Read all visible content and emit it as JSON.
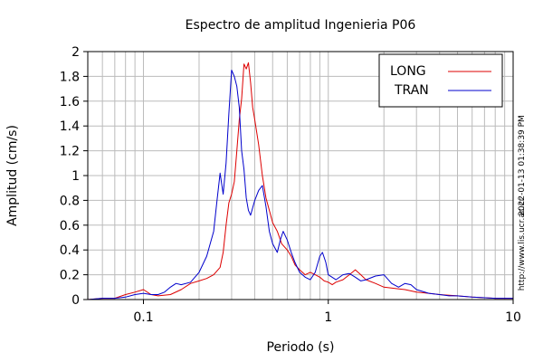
{
  "chart_data": {
    "type": "line",
    "title": "Espectro de amplitud Ingenieria P06",
    "xlabel": "Periodo (s)",
    "ylabel": "Amplitud (cm/s)",
    "x_scale": "log",
    "xlim": [
      0.05,
      10
    ],
    "ylim": [
      0,
      2
    ],
    "x_ticks": [
      {
        "value": 0.1,
        "label": "0.1"
      },
      {
        "value": 1,
        "label": "1"
      },
      {
        "value": 10,
        "label": "10"
      }
    ],
    "y_ticks": [
      {
        "value": 0,
        "label": "0"
      },
      {
        "value": 0.2,
        "label": "0.2"
      },
      {
        "value": 0.4,
        "label": "0.4"
      },
      {
        "value": 0.6,
        "label": "0.6"
      },
      {
        "value": 0.8,
        "label": "0.8"
      },
      {
        "value": 1.0,
        "label": "1"
      },
      {
        "value": 1.2,
        "label": "1.2"
      },
      {
        "value": 1.4,
        "label": "1.4"
      },
      {
        "value": 1.6,
        "label": "1.6"
      },
      {
        "value": 1.8,
        "label": "1.8"
      },
      {
        "value": 2.0,
        "label": "2"
      }
    ],
    "grid": true,
    "legend_position": "top-right",
    "series": [
      {
        "name": "LONG",
        "color": "#dd0000",
        "points": [
          [
            0.05,
            0.0
          ],
          [
            0.06,
            0.01
          ],
          [
            0.07,
            0.01
          ],
          [
            0.08,
            0.04
          ],
          [
            0.09,
            0.06
          ],
          [
            0.1,
            0.08
          ],
          [
            0.11,
            0.04
          ],
          [
            0.12,
            0.03
          ],
          [
            0.14,
            0.04
          ],
          [
            0.16,
            0.08
          ],
          [
            0.18,
            0.13
          ],
          [
            0.2,
            0.15
          ],
          [
            0.22,
            0.17
          ],
          [
            0.24,
            0.2
          ],
          [
            0.26,
            0.26
          ],
          [
            0.27,
            0.38
          ],
          [
            0.28,
            0.6
          ],
          [
            0.29,
            0.78
          ],
          [
            0.3,
            0.85
          ],
          [
            0.31,
            0.95
          ],
          [
            0.32,
            1.2
          ],
          [
            0.33,
            1.45
          ],
          [
            0.34,
            1.62
          ],
          [
            0.35,
            1.9
          ],
          [
            0.36,
            1.86
          ],
          [
            0.37,
            1.91
          ],
          [
            0.38,
            1.75
          ],
          [
            0.39,
            1.55
          ],
          [
            0.4,
            1.45
          ],
          [
            0.42,
            1.25
          ],
          [
            0.44,
            1.0
          ],
          [
            0.46,
            0.82
          ],
          [
            0.48,
            0.72
          ],
          [
            0.5,
            0.62
          ],
          [
            0.53,
            0.55
          ],
          [
            0.56,
            0.45
          ],
          [
            0.6,
            0.4
          ],
          [
            0.63,
            0.35
          ],
          [
            0.66,
            0.28
          ],
          [
            0.7,
            0.24
          ],
          [
            0.75,
            0.2
          ],
          [
            0.8,
            0.22
          ],
          [
            0.85,
            0.2
          ],
          [
            0.9,
            0.18
          ],
          [
            0.95,
            0.15
          ],
          [
            1.0,
            0.14
          ],
          [
            1.05,
            0.12
          ],
          [
            1.1,
            0.14
          ],
          [
            1.2,
            0.16
          ],
          [
            1.3,
            0.2
          ],
          [
            1.4,
            0.24
          ],
          [
            1.5,
            0.2
          ],
          [
            1.6,
            0.16
          ],
          [
            1.8,
            0.13
          ],
          [
            2.0,
            0.1
          ],
          [
            2.3,
            0.09
          ],
          [
            2.6,
            0.08
          ],
          [
            3.0,
            0.06
          ],
          [
            3.5,
            0.05
          ],
          [
            4.0,
            0.04
          ],
          [
            5.0,
            0.03
          ],
          [
            6.0,
            0.02
          ],
          [
            8.0,
            0.01
          ],
          [
            10.0,
            0.01
          ]
        ]
      },
      {
        "name": "TRAN",
        "color": "#0000cc",
        "points": [
          [
            0.05,
            0.0
          ],
          [
            0.06,
            0.01
          ],
          [
            0.07,
            0.01
          ],
          [
            0.08,
            0.02
          ],
          [
            0.09,
            0.04
          ],
          [
            0.1,
            0.05
          ],
          [
            0.11,
            0.04
          ],
          [
            0.12,
            0.04
          ],
          [
            0.13,
            0.06
          ],
          [
            0.14,
            0.1
          ],
          [
            0.15,
            0.13
          ],
          [
            0.16,
            0.12
          ],
          [
            0.18,
            0.14
          ],
          [
            0.2,
            0.22
          ],
          [
            0.22,
            0.35
          ],
          [
            0.24,
            0.55
          ],
          [
            0.25,
            0.8
          ],
          [
            0.26,
            1.02
          ],
          [
            0.27,
            0.85
          ],
          [
            0.28,
            1.1
          ],
          [
            0.29,
            1.5
          ],
          [
            0.3,
            1.85
          ],
          [
            0.31,
            1.8
          ],
          [
            0.32,
            1.72
          ],
          [
            0.33,
            1.55
          ],
          [
            0.34,
            1.2
          ],
          [
            0.35,
            1.05
          ],
          [
            0.36,
            0.82
          ],
          [
            0.37,
            0.72
          ],
          [
            0.38,
            0.68
          ],
          [
            0.4,
            0.8
          ],
          [
            0.42,
            0.88
          ],
          [
            0.44,
            0.92
          ],
          [
            0.46,
            0.75
          ],
          [
            0.48,
            0.55
          ],
          [
            0.5,
            0.45
          ],
          [
            0.53,
            0.38
          ],
          [
            0.55,
            0.48
          ],
          [
            0.57,
            0.55
          ],
          [
            0.6,
            0.48
          ],
          [
            0.63,
            0.38
          ],
          [
            0.66,
            0.3
          ],
          [
            0.7,
            0.22
          ],
          [
            0.75,
            0.18
          ],
          [
            0.8,
            0.16
          ],
          [
            0.85,
            0.22
          ],
          [
            0.9,
            0.35
          ],
          [
            0.93,
            0.38
          ],
          [
            0.97,
            0.3
          ],
          [
            1.0,
            0.2
          ],
          [
            1.1,
            0.16
          ],
          [
            1.2,
            0.2
          ],
          [
            1.3,
            0.21
          ],
          [
            1.4,
            0.18
          ],
          [
            1.5,
            0.15
          ],
          [
            1.6,
            0.16
          ],
          [
            1.8,
            0.19
          ],
          [
            2.0,
            0.2
          ],
          [
            2.2,
            0.13
          ],
          [
            2.4,
            0.1
          ],
          [
            2.6,
            0.13
          ],
          [
            2.8,
            0.12
          ],
          [
            3.0,
            0.08
          ],
          [
            3.5,
            0.05
          ],
          [
            4.0,
            0.04
          ],
          [
            4.5,
            0.03
          ],
          [
            5.0,
            0.03
          ],
          [
            6.0,
            0.02
          ],
          [
            8.0,
            0.01
          ],
          [
            10.0,
            0.01
          ]
        ]
      }
    ]
  },
  "side_text": {
    "timestamp": "2022-01-13 01:38:39 PM",
    "url": "http://www.lis.ucr.ac.cr"
  }
}
